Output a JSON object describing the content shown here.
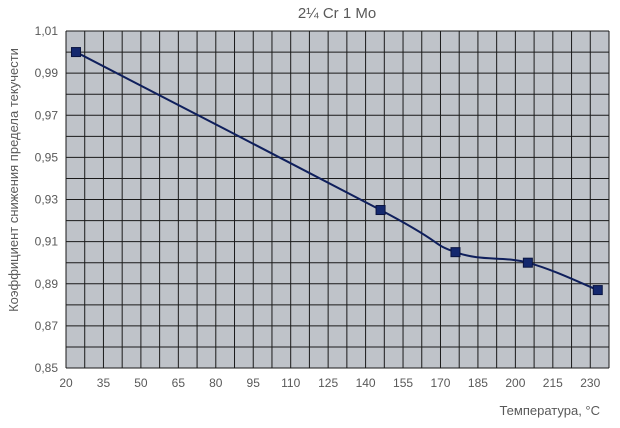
{
  "chart_data": {
    "type": "line",
    "title": "2¼ Cr 1 Mo",
    "xlabel": "Температура, °C",
    "ylabel": "Коэффициент снижения предела текучести",
    "x_ticks": [
      "20",
      "35",
      "50",
      "65",
      "80",
      "95",
      "110",
      "125",
      "140",
      "155",
      "170",
      "185",
      "200",
      "215",
      "230"
    ],
    "y_ticks": [
      "0,85",
      "0,87",
      "0,89",
      "0,91",
      "0,93",
      "0,95",
      "0,97",
      "0,99",
      "1,01"
    ],
    "xlim": [
      20,
      237.5
    ],
    "ylim": [
      0.85,
      1.01
    ],
    "grid": true,
    "series": [
      {
        "x": [
          24,
          146,
          176,
          205,
          233
        ],
        "y": [
          1.0,
          0.925,
          0.905,
          0.9,
          0.887
        ]
      }
    ],
    "colors": {
      "plot_background": "#bfc3c9",
      "grid": "#1a1a1a",
      "line": "#0f1f5c",
      "marker": "#14286e",
      "text": "#595959"
    }
  }
}
